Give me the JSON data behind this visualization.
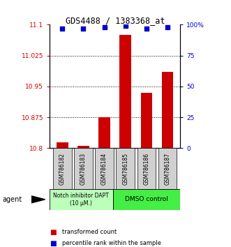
{
  "title": "GDS4488 / 1383368_at",
  "categories": [
    "GSM786182",
    "GSM786183",
    "GSM786184",
    "GSM786185",
    "GSM786186",
    "GSM786187"
  ],
  "bar_values": [
    10.815,
    10.805,
    10.875,
    11.075,
    10.935,
    10.985
  ],
  "bar_bottom": 10.8,
  "percentile_values": [
    97,
    97,
    98,
    99,
    97,
    98
  ],
  "bar_color": "#cc0000",
  "dot_color": "#0000cc",
  "ylim_left": [
    10.8,
    11.1
  ],
  "ylim_right": [
    0,
    100
  ],
  "yticks_left": [
    10.8,
    10.875,
    10.95,
    11.025,
    11.1
  ],
  "ytick_labels_left": [
    "10.8",
    "10.875",
    "10.95",
    "11.025",
    "11.1"
  ],
  "yticks_right": [
    0,
    25,
    50,
    75,
    100
  ],
  "ytick_labels_right": [
    "0",
    "25",
    "50",
    "75",
    "100%"
  ],
  "group1_label": "Notch inhibitor DAPT\n(10 μM.)",
  "group2_label": "DMSO control",
  "group1_color": "#bbffbb",
  "group2_color": "#44ee44",
  "agent_label": "agent",
  "legend_bar_label": "transformed count",
  "legend_dot_label": "percentile rank within the sample",
  "background_color": "#ffffff",
  "sample_box_color": "#d0d0d0"
}
